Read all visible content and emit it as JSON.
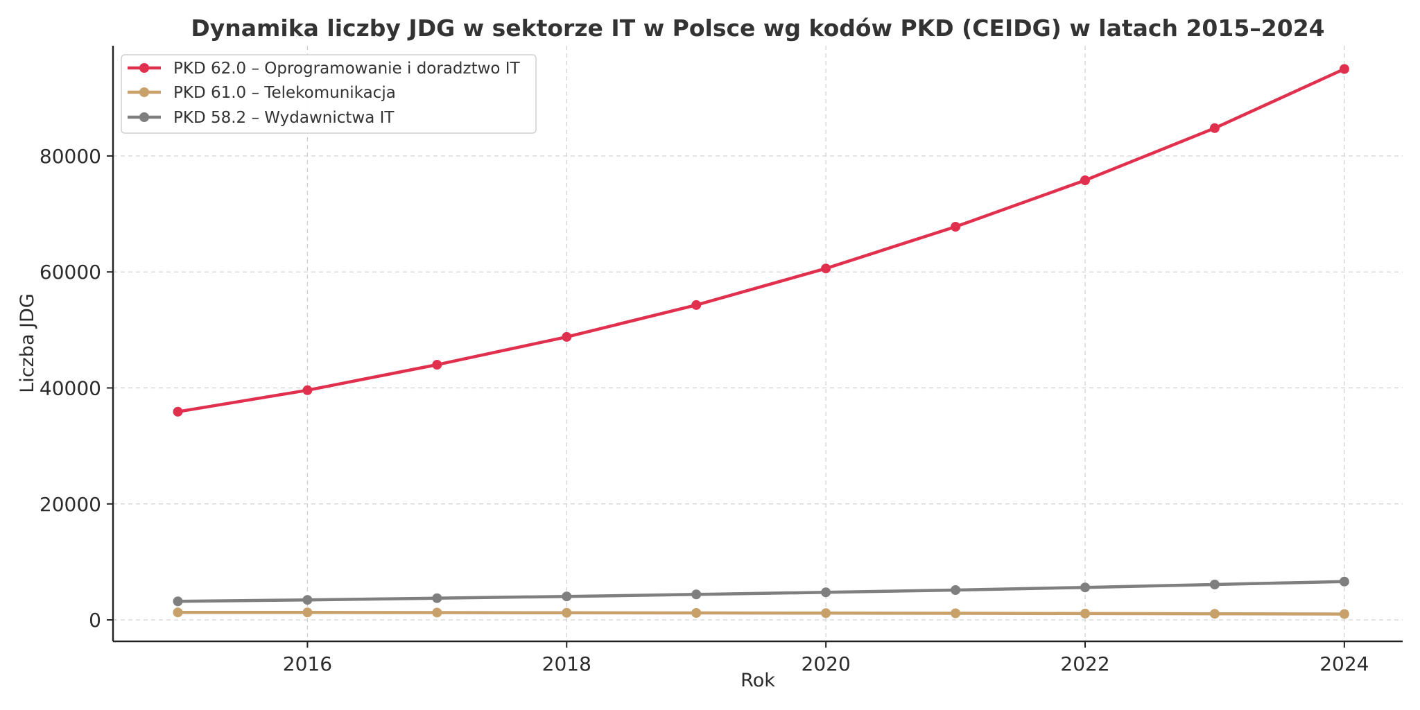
{
  "chart_data": {
    "type": "line",
    "title": "Dynamika liczby JDG w sektorze IT w Polsce wg kodów PKD (CEIDG) w latach 2015–2024",
    "xlabel": "Rok",
    "ylabel": "Liczba JDG",
    "x": [
      2015,
      2016,
      2017,
      2018,
      2019,
      2020,
      2021,
      2022,
      2023,
      2024
    ],
    "xlim": [
      2014.5,
      2024.45
    ],
    "ylim": [
      -3700,
      99000
    ],
    "xticks": [
      2016,
      2018,
      2020,
      2022,
      2024
    ],
    "yticks": [
      0,
      20000,
      40000,
      60000,
      80000
    ],
    "grid": true,
    "legend_position": "top-left",
    "series": [
      {
        "name": "PKD 62.0 – Oprogramowanie i doradztwo IT",
        "color": "#E0304E",
        "values": [
          35900,
          39600,
          44000,
          48800,
          54300,
          60600,
          67800,
          75800,
          84800,
          95000
        ]
      },
      {
        "name": "PKD 61.0 – Telekomunikacja",
        "color": "#C8A06A",
        "values": [
          1300,
          1280,
          1260,
          1230,
          1200,
          1170,
          1140,
          1100,
          1060,
          1010
        ]
      },
      {
        "name": "PKD 58.2 – Wydawnictwa IT",
        "color": "#7F7F7F",
        "values": [
          3200,
          3450,
          3750,
          4050,
          4400,
          4750,
          5150,
          5600,
          6100,
          6600
        ]
      }
    ]
  }
}
